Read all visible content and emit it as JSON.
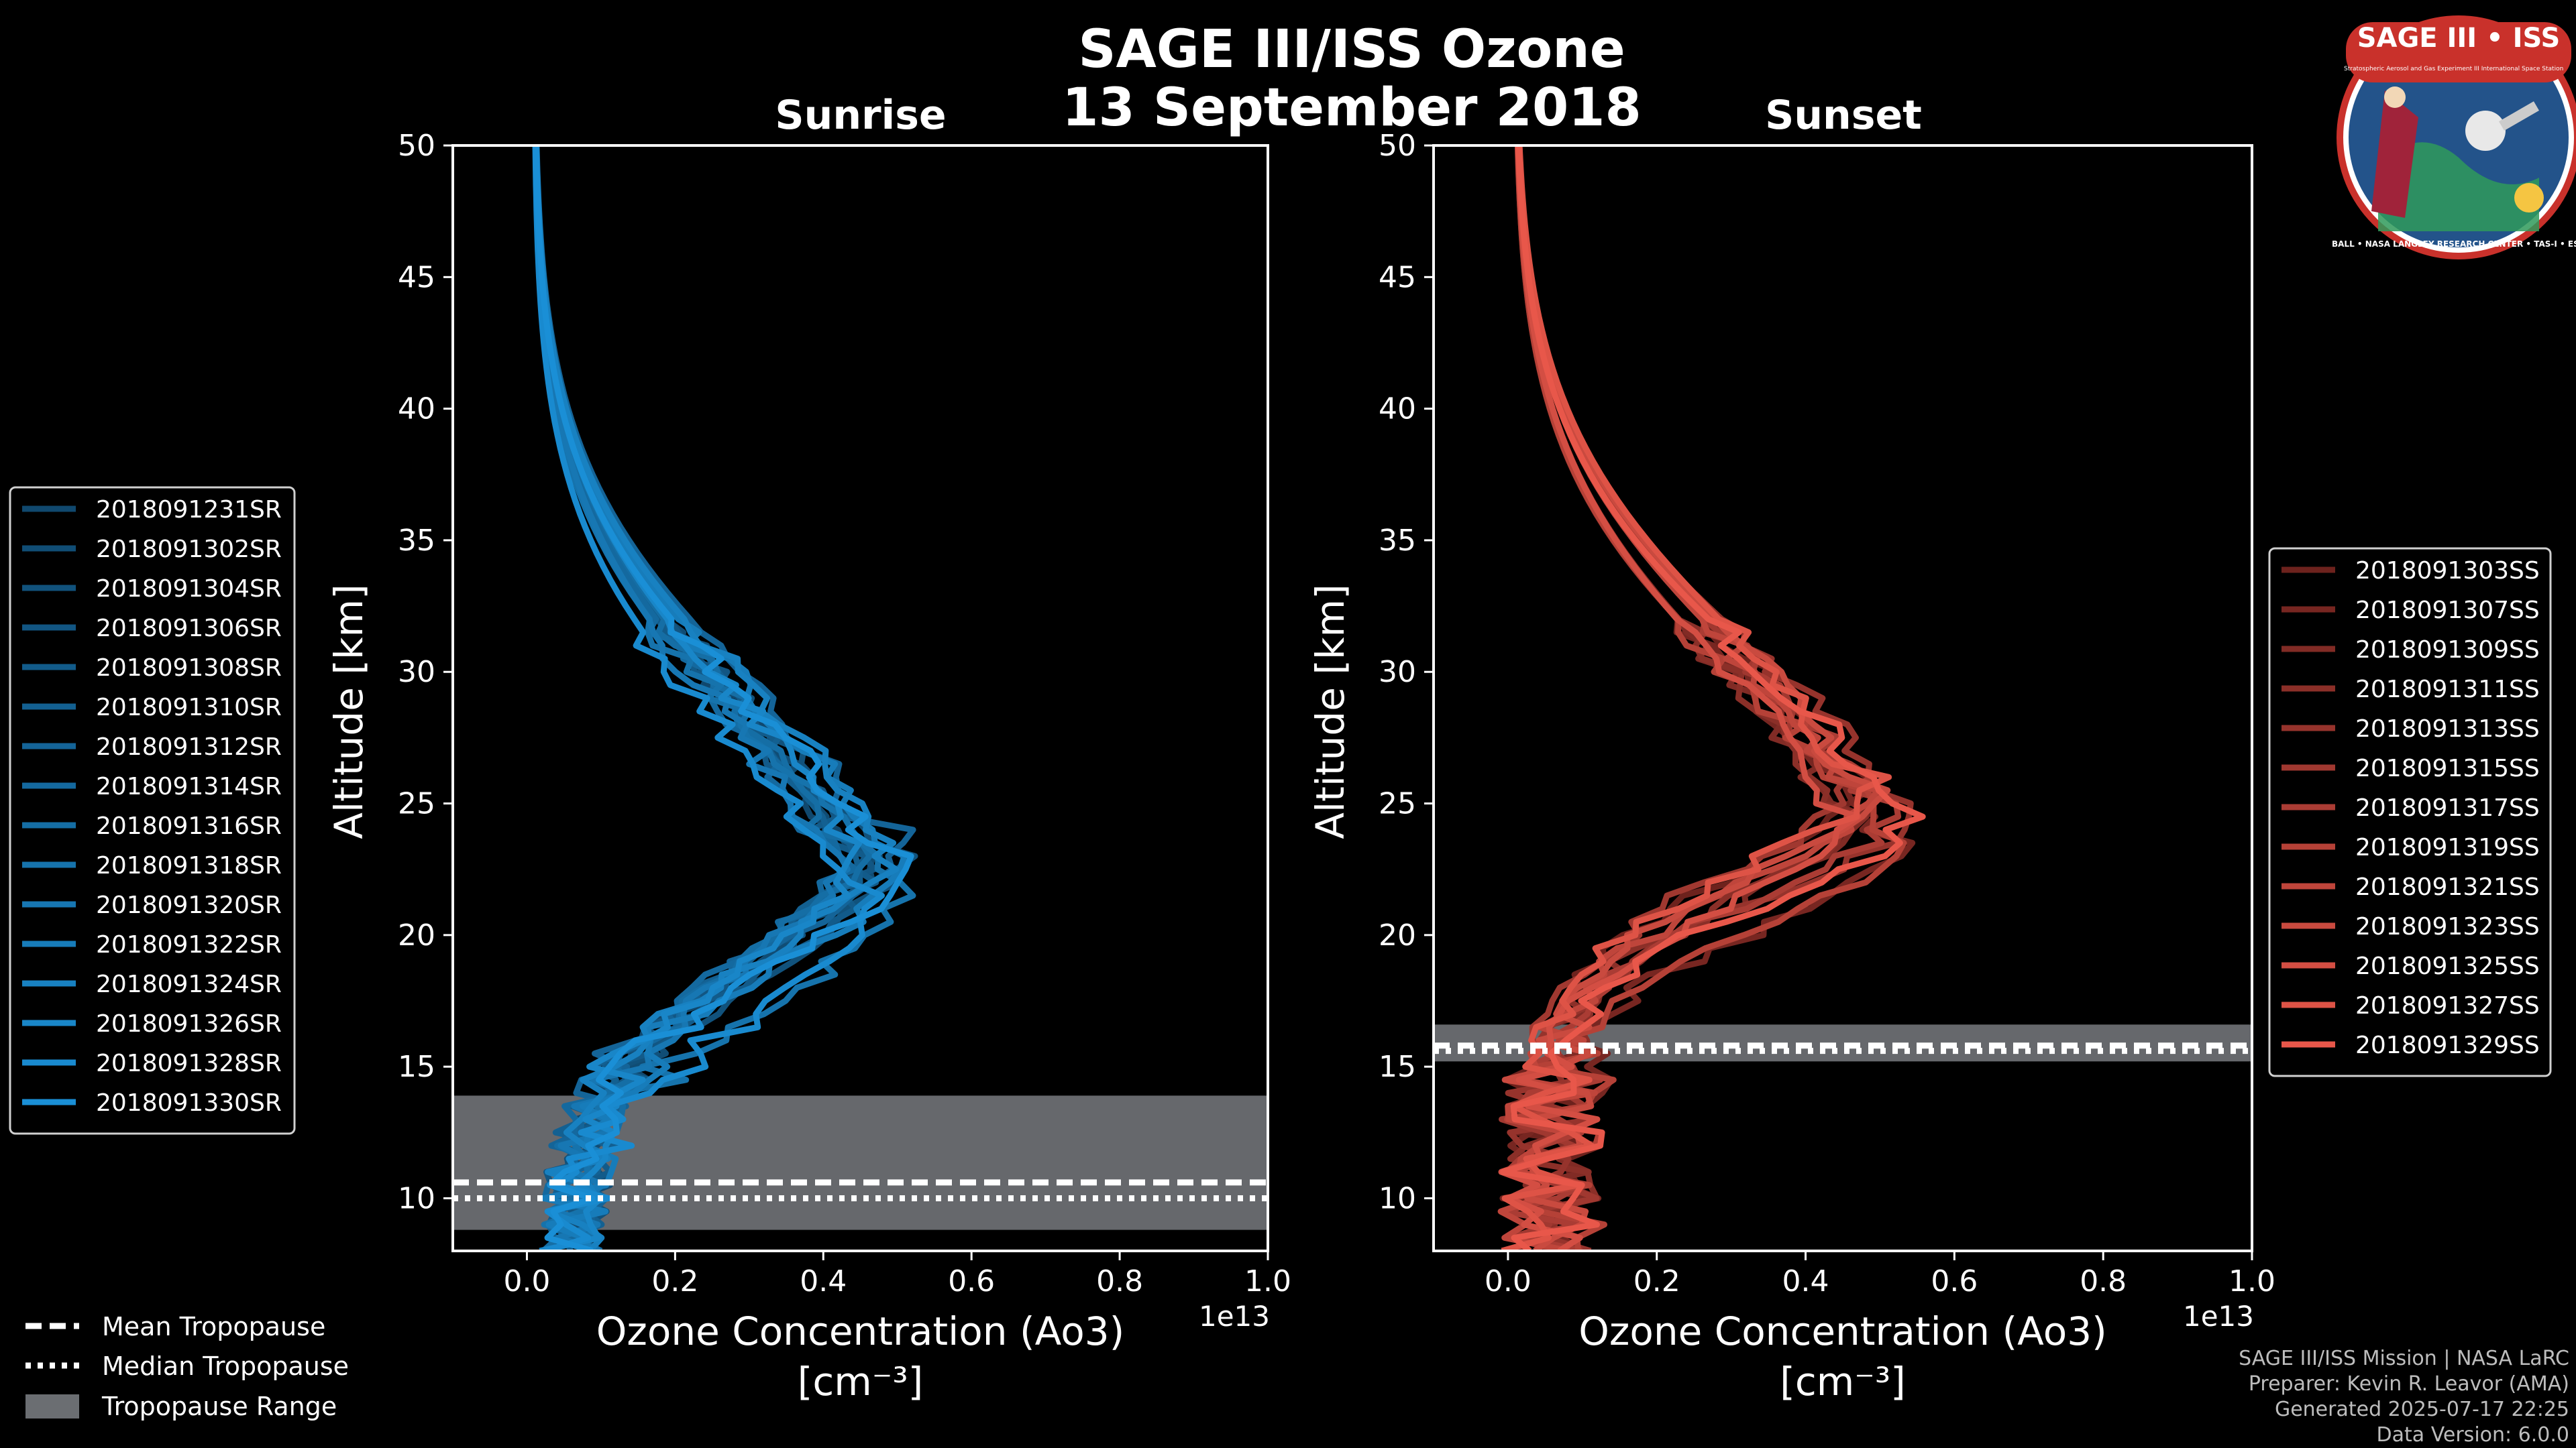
{
  "title": {
    "line1": "SAGE III/ISS Ozone",
    "line2": "13 September 2018"
  },
  "logo": {
    "text": "SAGE III • ISS",
    "subtext_left": "Stratospheric Aerosol and Gas Experiment III",
    "subtext_right": "International Space Station",
    "ring_text": "BALL • NASA LANGLEY RESEARCH CENTER • TAS-I • ESA"
  },
  "colors": {
    "background": "#000000",
    "sunrise": "#1a8fd6",
    "sunset": "#e8574a",
    "tropopause_band": "#6b6e72"
  },
  "chart_data": [
    {
      "type": "line",
      "title": "Sunrise",
      "xlabel": "Ozone Concentration (Ao3)",
      "xunit": "[cm⁻³]",
      "ylabel": "Altitude [km]",
      "x_offset_label": "1e13",
      "xlim": [
        -0.1,
        1.0
      ],
      "ylim": [
        8,
        50
      ],
      "xticks": [
        "0.0",
        "0.2",
        "0.4",
        "0.6",
        "0.8",
        "1.0"
      ],
      "yticks": [
        "10",
        "15",
        "20",
        "25",
        "30",
        "35",
        "40",
        "45",
        "50"
      ],
      "tropopause": {
        "mean": 10.6,
        "median": 10.0,
        "range": [
          8.8,
          13.9
        ]
      },
      "peak": {
        "altitude": 23.0,
        "value": 0.42
      },
      "series_names": [
        "2018091231SR",
        "2018091302SR",
        "2018091304SR",
        "2018091306SR",
        "2018091308SR",
        "2018091310SR",
        "2018091312SR",
        "2018091314SR",
        "2018091316SR",
        "2018091318SR",
        "2018091320SR",
        "2018091322SR",
        "2018091324SR",
        "2018091326SR",
        "2018091328SR",
        "2018091330SR"
      ]
    },
    {
      "type": "line",
      "title": "Sunset",
      "xlabel": "Ozone Concentration (Ao3)",
      "xunit": "[cm⁻³]",
      "ylabel": "Altitude [km]",
      "x_offset_label": "1e13",
      "xlim": [
        -0.1,
        1.0
      ],
      "ylim": [
        8,
        50
      ],
      "xticks": [
        "0.0",
        "0.2",
        "0.4",
        "0.6",
        "0.8",
        "1.0"
      ],
      "yticks": [
        "10",
        "15",
        "20",
        "25",
        "30",
        "35",
        "40",
        "45",
        "50"
      ],
      "tropopause": {
        "mean": 15.8,
        "median": 15.6,
        "range": [
          15.2,
          16.6
        ]
      },
      "peak": {
        "altitude": 25.0,
        "value": 0.45
      },
      "series_names": [
        "2018091303SS",
        "2018091307SS",
        "2018091309SS",
        "2018091311SS",
        "2018091313SS",
        "2018091315SS",
        "2018091317SS",
        "2018091319SS",
        "2018091321SS",
        "2018091323SS",
        "2018091325SS",
        "2018091327SS",
        "2018091329SS"
      ]
    }
  ],
  "bottom_legend": {
    "mean": "Mean Tropopause",
    "median": "Median Tropopause",
    "range": "Tropopause Range"
  },
  "credits": {
    "line1": "SAGE III/ISS Mission | NASA LaRC",
    "line2": "Preparer: Kevin R. Leavor (AMA)",
    "line3": "Generated 2025-07-17 22:25",
    "line4": "Data Version: 6.0.0"
  }
}
